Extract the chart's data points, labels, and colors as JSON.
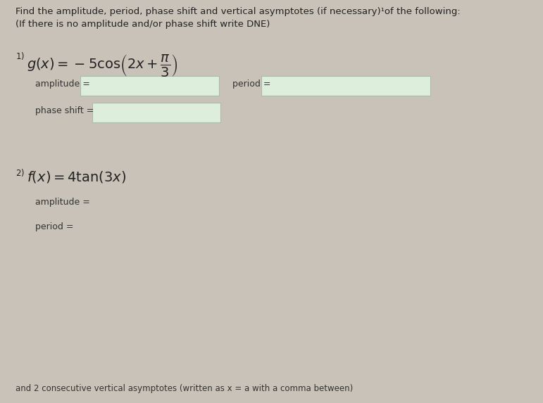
{
  "background_color": "#c9c2b8",
  "title_line1": "Find the amplitude, period, phase shift and vertical asymptotes (if necessary)¹of the following:",
  "title_line2": "(If there is no amplitude and/or phase shift write DNE)",
  "eq1_amplitude_label": "amplitude =",
  "eq1_period_label": "period =",
  "eq1_phase_label": "phase shift =",
  "eq2_amplitude_label": "amplitude =",
  "eq2_period_label": "period =",
  "eq2_asymptote_label": "and 2 consecutive vertical asymptotes (written as x = a with a comma between)",
  "box_color": "#ddeedd",
  "box_border": "#aabbaa",
  "text_color": "#222222",
  "label_color": "#333333",
  "font_size_title": 9.5,
  "font_size_eq": 13,
  "font_size_label": 9,
  "font_size_small": 8.5,
  "fig_w": 7.71,
  "fig_h": 5.73,
  "dpi": 100
}
